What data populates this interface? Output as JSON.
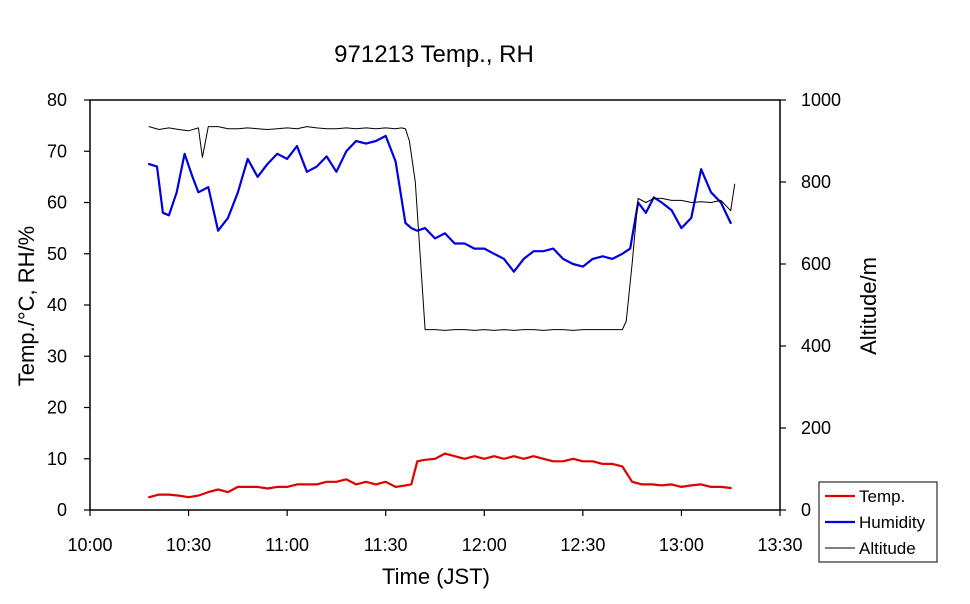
{
  "chart_data": {
    "type": "line",
    "title": "971213 Temp., RH",
    "xlabel": "Time (JST)",
    "ylabel": "Temp./°C, RH/%",
    "y2label": "Altitude/m",
    "x_ticks": [
      "10:00",
      "10:30",
      "11:00",
      "11:30",
      "12:00",
      "12:30",
      "13:00",
      "13:30"
    ],
    "x_range_hours": [
      10.0,
      13.5
    ],
    "ylim": [
      0,
      80
    ],
    "y_ticks": [
      "0",
      "10",
      "20",
      "30",
      "40",
      "50",
      "60",
      "70",
      "80"
    ],
    "y2lim": [
      0,
      1000
    ],
    "y2_ticks": [
      "0",
      "200",
      "400",
      "600",
      "800",
      "1000"
    ],
    "legend": {
      "position": "bottom-right",
      "entries": [
        "Temp.",
        "Humidity",
        "Altitude"
      ]
    },
    "series": [
      {
        "name": "Temp.",
        "axis": "left",
        "color": "#e00000",
        "x": [
          10.3,
          10.35,
          10.4,
          10.45,
          10.5,
          10.55,
          10.6,
          10.65,
          10.7,
          10.75,
          10.8,
          10.85,
          10.9,
          10.95,
          11.0,
          11.05,
          11.1,
          11.15,
          11.2,
          11.25,
          11.3,
          11.35,
          11.4,
          11.45,
          11.5,
          11.55,
          11.6,
          11.63,
          11.66,
          11.7,
          11.75,
          11.8,
          11.85,
          11.9,
          11.95,
          12.0,
          12.05,
          12.1,
          12.15,
          12.2,
          12.25,
          12.3,
          12.35,
          12.4,
          12.45,
          12.5,
          12.55,
          12.6,
          12.65,
          12.7,
          12.75,
          12.8,
          12.85,
          12.9,
          12.95,
          13.0,
          13.05,
          13.1,
          13.15,
          13.2,
          13.25
        ],
        "values": [
          2.5,
          3.0,
          3.0,
          2.8,
          2.5,
          2.8,
          3.5,
          4.0,
          3.5,
          4.5,
          4.5,
          4.5,
          4.2,
          4.5,
          4.5,
          5.0,
          5.0,
          5.0,
          5.5,
          5.5,
          6.0,
          5.0,
          5.5,
          5.0,
          5.5,
          4.5,
          4.8,
          5.0,
          9.5,
          9.8,
          10.0,
          11.0,
          10.5,
          10.0,
          10.5,
          10.0,
          10.5,
          10.0,
          10.5,
          10.0,
          10.5,
          10.0,
          9.5,
          9.5,
          10.0,
          9.5,
          9.5,
          9.0,
          9.0,
          8.5,
          5.5,
          5.0,
          5.0,
          4.8,
          5.0,
          4.5,
          4.8,
          5.0,
          4.5,
          4.5,
          4.3
        ],
        "label": "Temp."
      },
      {
        "name": "Humidity",
        "axis": "left",
        "color": "#0000e0",
        "x": [
          10.3,
          10.34,
          10.37,
          10.4,
          10.44,
          10.48,
          10.52,
          10.55,
          10.6,
          10.65,
          10.7,
          10.75,
          10.8,
          10.85,
          10.9,
          10.95,
          11.0,
          11.05,
          11.1,
          11.15,
          11.2,
          11.25,
          11.3,
          11.35,
          11.4,
          11.45,
          11.5,
          11.55,
          11.6,
          11.63,
          11.66,
          11.7,
          11.75,
          11.8,
          11.85,
          11.9,
          11.95,
          12.0,
          12.05,
          12.1,
          12.15,
          12.2,
          12.25,
          12.3,
          12.35,
          12.4,
          12.45,
          12.5,
          12.55,
          12.6,
          12.65,
          12.7,
          12.74,
          12.78,
          12.82,
          12.86,
          12.9,
          12.95,
          13.0,
          13.05,
          13.1,
          13.15,
          13.2,
          13.25
        ],
        "values": [
          67.5,
          67.0,
          58.0,
          57.5,
          62.0,
          69.5,
          65.0,
          62.0,
          63.0,
          54.5,
          57.0,
          62.0,
          68.5,
          65.0,
          67.5,
          69.5,
          68.5,
          71.0,
          66.0,
          67.0,
          69.0,
          66.0,
          70.0,
          72.0,
          71.5,
          72.0,
          73.0,
          68.0,
          56.0,
          55.0,
          54.5,
          55.0,
          53.0,
          54.0,
          52.0,
          52.0,
          51.0,
          51.0,
          50.0,
          49.0,
          46.5,
          49.0,
          50.5,
          50.5,
          51.0,
          49.0,
          48.0,
          47.5,
          49.0,
          49.5,
          49.0,
          50.0,
          51.0,
          60.0,
          58.0,
          61.0,
          60.0,
          58.5,
          55.0,
          57.0,
          66.5,
          62.0,
          60.0,
          56.0
        ],
        "label": "Humidity"
      },
      {
        "name": "Altitude",
        "axis": "right",
        "color": "#000000",
        "x": [
          10.3,
          10.35,
          10.4,
          10.45,
          10.5,
          10.55,
          10.57,
          10.6,
          10.65,
          10.7,
          10.75,
          10.8,
          10.85,
          10.9,
          10.95,
          11.0,
          11.05,
          11.1,
          11.15,
          11.2,
          11.25,
          11.3,
          11.35,
          11.4,
          11.45,
          11.5,
          11.55,
          11.58,
          11.6,
          11.62,
          11.65,
          11.7,
          11.75,
          11.8,
          11.85,
          11.9,
          11.95,
          12.0,
          12.05,
          12.1,
          12.15,
          12.2,
          12.25,
          12.3,
          12.35,
          12.4,
          12.45,
          12.5,
          12.55,
          12.6,
          12.65,
          12.7,
          12.72,
          12.75,
          12.78,
          12.82,
          12.86,
          12.9,
          12.95,
          13.0,
          13.05,
          13.1,
          13.15,
          13.2,
          13.25,
          13.27
        ],
        "values": [
          935,
          928,
          932,
          928,
          925,
          932,
          860,
          935,
          935,
          930,
          930,
          932,
          930,
          928,
          930,
          932,
          930,
          935,
          932,
          930,
          930,
          932,
          930,
          932,
          930,
          932,
          930,
          932,
          930,
          900,
          800,
          440,
          440,
          438,
          440,
          440,
          438,
          440,
          438,
          440,
          438,
          440,
          440,
          438,
          440,
          440,
          438,
          440,
          440,
          440,
          440,
          440,
          460,
          600,
          760,
          750,
          760,
          760,
          755,
          755,
          750,
          752,
          750,
          755,
          730,
          795
        ],
        "label": "Altitude"
      }
    ]
  }
}
